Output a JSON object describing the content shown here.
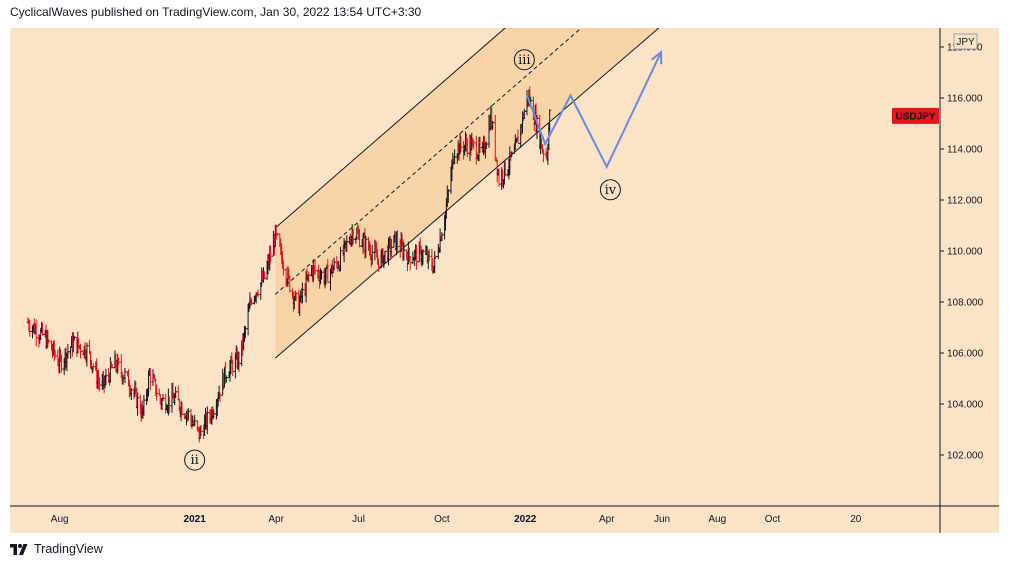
{
  "header": {
    "publisher_line": "CyclicalWaves published on TradingView.com, Jan 30, 2022 13:54 UTC+3:30"
  },
  "footer": {
    "brand": "TradingView"
  },
  "colors": {
    "background": "#fbe3c7",
    "channel_fill": "#f9d4a8",
    "up_bar": "#131722",
    "down_bar": "#e0161b",
    "projection": "#6a8bdc",
    "symbol_badge": "#e0161b"
  },
  "chart_data": {
    "type": "line",
    "symbol": "USDJPY",
    "currency": "JPY",
    "x_tick_labels": [
      "Aug",
      "2021",
      "Apr",
      "Jul",
      "Oct",
      "2022",
      "Apr",
      "Jun",
      "Aug",
      "Oct",
      "20"
    ],
    "y_ticks": [
      102,
      104,
      106,
      108,
      110,
      112,
      114,
      116,
      118
    ],
    "y_tick_labels": [
      "102.000",
      "104.000",
      "106.000",
      "108.000",
      "110.000",
      "112.000",
      "114.000",
      "116.000",
      "118.000"
    ],
    "ylim": [
      100.4,
      120.2
    ],
    "last_price_label": "USDJPY",
    "price_path": [
      [
        "2020-07-01",
        107.2
      ],
      [
        "2020-07-20",
        106.6
      ],
      [
        "2020-08-05",
        105.6
      ],
      [
        "2020-08-20",
        106.4
      ],
      [
        "2020-09-05",
        106.1
      ],
      [
        "2020-09-20",
        104.6
      ],
      [
        "2020-10-05",
        105.6
      ],
      [
        "2020-10-20",
        104.9
      ],
      [
        "2020-11-05",
        103.6
      ],
      [
        "2020-11-12",
        105.2
      ],
      [
        "2020-11-25",
        104.1
      ],
      [
        "2020-12-10",
        104.2
      ],
      [
        "2020-12-25",
        103.6
      ],
      [
        "2021-01-06",
        102.8
      ],
      [
        "2021-01-20",
        103.7
      ],
      [
        "2021-02-05",
        105.3
      ],
      [
        "2021-02-20",
        105.8
      ],
      [
        "2021-03-05",
        108.2
      ],
      [
        "2021-03-20",
        109.0
      ],
      [
        "2021-03-31",
        110.6
      ],
      [
        "2021-04-15",
        108.8
      ],
      [
        "2021-04-25",
        107.8
      ],
      [
        "2021-05-10",
        109.3
      ],
      [
        "2021-05-25",
        109.0
      ],
      [
        "2021-06-10",
        109.6
      ],
      [
        "2021-06-25",
        110.8
      ],
      [
        "2021-07-10",
        110.2
      ],
      [
        "2021-07-25",
        109.6
      ],
      [
        "2021-08-10",
        110.4
      ],
      [
        "2021-08-25",
        109.8
      ],
      [
        "2021-09-10",
        109.9
      ],
      [
        "2021-09-22",
        109.4
      ],
      [
        "2021-10-05",
        111.5
      ],
      [
        "2021-10-15",
        114.0
      ],
      [
        "2021-10-31",
        114.2
      ],
      [
        "2021-11-15",
        113.8
      ],
      [
        "2021-11-24",
        115.3
      ],
      [
        "2021-12-03",
        112.8
      ],
      [
        "2021-12-20",
        113.8
      ],
      [
        "2022-01-04",
        116.1
      ],
      [
        "2022-01-12",
        115.2
      ],
      [
        "2022-01-20",
        114.0
      ],
      [
        "2022-01-25",
        113.8
      ],
      [
        "2022-01-28",
        115.3
      ]
    ],
    "channel": {
      "upper": [
        [
          "2021-03-31",
          110.9
        ],
        [
          "2022-10-31",
          128.8
        ]
      ],
      "lower": [
        [
          "2021-03-31",
          105.8
        ],
        [
          "2022-10-31",
          123.5
        ]
      ],
      "median": [
        [
          "2021-03-31",
          108.3
        ],
        [
          "2022-10-31",
          126.2
        ]
      ]
    },
    "projection": [
      [
        "2022-01-03",
        116.1
      ],
      [
        "2022-01-23",
        114.2
      ],
      [
        "2022-02-20",
        116.1
      ],
      [
        "2022-04-01",
        113.3
      ],
      [
        "2022-05-31",
        117.8
      ]
    ],
    "wave_labels": [
      {
        "label": "ii",
        "date": "2021-01-01",
        "value": 101.8,
        "label_position": "below"
      },
      {
        "label": "iii",
        "date": "2021-12-31",
        "value": 117.5,
        "label_position": "above"
      },
      {
        "label": "iv",
        "date": "2022-04-05",
        "value": 112.4,
        "label_position": "below"
      }
    ]
  }
}
